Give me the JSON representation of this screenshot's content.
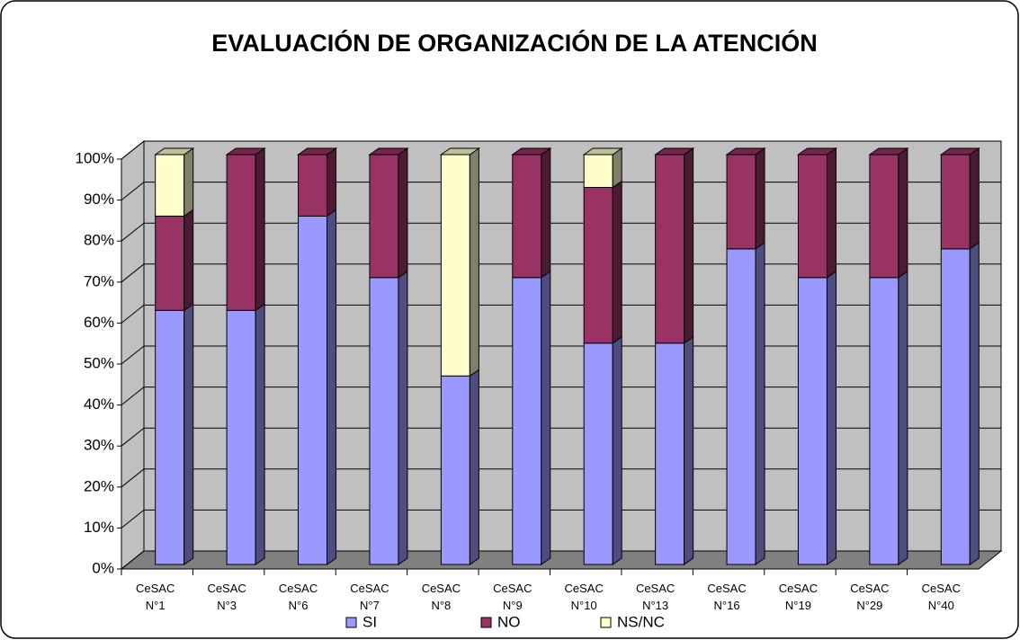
{
  "chart_data": {
    "type": "bar",
    "stacked": true,
    "title": "EVALUACIÓN DE ORGANIZACIÓN DE LA ATENCIÓN",
    "categories": [
      "CeSAC N°1",
      "CeSAC N°3",
      "CeSAC N°6",
      "CeSAC N°7",
      "CeSAC N°8",
      "CeSAC N°9",
      "CeSAC N°10",
      "CeSAC N°13",
      "CeSAC N°16",
      "CeSAC N°19",
      "CeSAC N°29",
      "CeSAC N°40"
    ],
    "series": [
      {
        "name": "SI",
        "color": "#9999ff",
        "values": [
          62,
          62,
          85,
          70,
          46,
          70,
          54,
          54,
          77,
          70,
          70,
          77
        ]
      },
      {
        "name": "NO",
        "color": "#993366",
        "values": [
          23,
          38,
          15,
          30,
          0,
          30,
          38,
          46,
          23,
          30,
          30,
          23
        ]
      },
      {
        "name": "NS/NC",
        "color": "#ffffcc",
        "values": [
          15,
          0,
          0,
          0,
          54,
          0,
          8,
          0,
          0,
          0,
          0,
          0
        ]
      }
    ],
    "ylim": [
      0,
      100
    ],
    "yticks": [
      {
        "value": 0,
        "label": "0%"
      },
      {
        "value": 10,
        "label": "10%"
      },
      {
        "value": 20,
        "label": "20%"
      },
      {
        "value": 30,
        "label": "30%"
      },
      {
        "value": 40,
        "label": "40%"
      },
      {
        "value": 50,
        "label": "50%"
      },
      {
        "value": 60,
        "label": "60%"
      },
      {
        "value": 70,
        "label": "70%"
      },
      {
        "value": 80,
        "label": "80%"
      },
      {
        "value": 90,
        "label": "90%"
      },
      {
        "value": 100,
        "label": "100%"
      }
    ],
    "grid": true,
    "legend": "bottom"
  }
}
